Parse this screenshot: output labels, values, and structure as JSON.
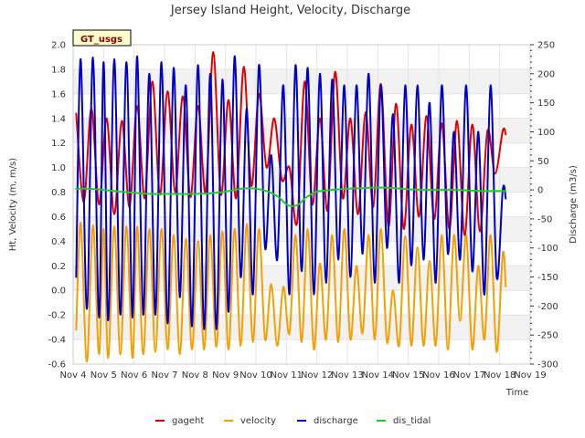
{
  "chart_data": {
    "type": "line",
    "title": "Jersey Island Height, Velocity, Discharge",
    "badge": "GT_usgs",
    "xlabel": "Time",
    "ylabel_left": "Ht, Velocity (m, m/s)",
    "ylabel_right": "Discharge (m3/s)",
    "ylim_left": [
      -0.6,
      2.0
    ],
    "ylim_right": [
      -300,
      250
    ],
    "xlim": [
      4,
      19
    ],
    "x_ticks": [
      4,
      5,
      6,
      7,
      8,
      9,
      10,
      11,
      12,
      13,
      14,
      15,
      16,
      17,
      18,
      19
    ],
    "x_tick_labels": [
      "Nov 4",
      "Nov 5",
      "Nov 6",
      "Nov 7",
      "Nov 8",
      "Nov 9",
      "Nov 10",
      "Nov 11",
      "Nov 12",
      "Nov 13",
      "Nov 14",
      "Nov 15",
      "Nov 16",
      "Nov 17",
      "Nov 18",
      "Nov 19"
    ],
    "y_left_ticks": [
      -0.6,
      -0.4,
      -0.2,
      0.0,
      0.2,
      0.4,
      0.6,
      0.8,
      1.0,
      1.2,
      1.4,
      1.6,
      1.8,
      2.0
    ],
    "y_left_tick_labels": [
      "-0.6",
      "-0.4",
      "-0.2",
      "0.0",
      "0.2",
      "0.4",
      "0.6",
      "0.8",
      "1.0",
      "1.2",
      "1.4",
      "1.6",
      "1.8",
      "2.0"
    ],
    "y_right_ticks": [
      -300,
      -250,
      -200,
      -150,
      -100,
      -50,
      0,
      50,
      100,
      150,
      200,
      250
    ],
    "y_right_tick_labels": [
      "-300",
      "-250",
      "-200",
      "-150",
      "-100",
      "-50",
      "0",
      "50",
      "100",
      "150",
      "200",
      "250"
    ],
    "grid": true,
    "series": [
      {
        "name": "gageht",
        "color": "#e00000",
        "axis": "left",
        "x": [
          4.1,
          4.35,
          4.6,
          4.85,
          5.1,
          5.35,
          5.6,
          5.85,
          6.1,
          6.35,
          6.6,
          6.85,
          7.1,
          7.35,
          7.6,
          7.85,
          8.1,
          8.35,
          8.6,
          8.85,
          9.1,
          9.35,
          9.6,
          9.85,
          10.1,
          10.35,
          10.6,
          10.85,
          11.1,
          11.35,
          11.6,
          11.85,
          12.1,
          12.35,
          12.6,
          12.85,
          13.1,
          13.35,
          13.6,
          13.85,
          14.1,
          14.35,
          14.6,
          14.85,
          15.1,
          15.35,
          15.6,
          15.85,
          16.1,
          16.35,
          16.6,
          16.85,
          17.1,
          17.35,
          17.6,
          17.85,
          18.1,
          18.2
        ],
        "y": [
          1.44,
          0.72,
          1.48,
          0.7,
          1.4,
          0.62,
          1.38,
          0.68,
          1.5,
          0.75,
          1.7,
          0.78,
          1.62,
          0.8,
          1.58,
          0.76,
          1.5,
          0.8,
          1.94,
          0.78,
          1.55,
          0.75,
          1.82,
          0.85,
          1.6,
          1.0,
          1.4,
          0.9,
          1.0,
          0.55,
          1.7,
          0.7,
          1.4,
          0.65,
          1.78,
          0.75,
          1.4,
          0.62,
          1.45,
          0.68,
          1.68,
          0.52,
          1.52,
          0.5,
          1.35,
          0.6,
          1.42,
          0.58,
          1.36,
          0.5,
          1.38,
          0.45,
          1.35,
          0.48,
          1.3,
          0.95,
          1.3,
          1.27
        ]
      },
      {
        "name": "velocity",
        "color": "#f5a000",
        "axis": "left",
        "x": [
          4.1,
          4.25,
          4.45,
          4.65,
          4.85,
          5.0,
          5.15,
          5.35,
          5.55,
          5.75,
          5.95,
          6.1,
          6.3,
          6.5,
          6.7,
          6.9,
          7.1,
          7.3,
          7.5,
          7.7,
          7.9,
          8.1,
          8.3,
          8.5,
          8.7,
          8.9,
          9.1,
          9.3,
          9.5,
          9.7,
          9.9,
          10.1,
          10.3,
          10.5,
          10.7,
          10.9,
          11.1,
          11.3,
          11.5,
          11.7,
          11.9,
          12.1,
          12.3,
          12.5,
          12.7,
          12.9,
          13.1,
          13.3,
          13.5,
          13.7,
          13.9,
          14.1,
          14.3,
          14.5,
          14.7,
          14.9,
          15.1,
          15.3,
          15.5,
          15.7,
          15.9,
          16.1,
          16.3,
          16.5,
          16.7,
          16.9,
          17.1,
          17.3,
          17.5,
          17.7,
          17.9,
          18.1,
          18.2
        ],
        "y": [
          -0.32,
          0.55,
          -0.58,
          0.53,
          -0.52,
          0.5,
          -0.55,
          0.52,
          -0.52,
          0.52,
          -0.55,
          0.52,
          -0.52,
          0.5,
          -0.5,
          0.5,
          -0.48,
          0.45,
          -0.52,
          0.42,
          -0.48,
          0.4,
          -0.48,
          0.45,
          -0.46,
          0.48,
          -0.48,
          0.5,
          -0.45,
          0.54,
          -0.42,
          0.5,
          -0.4,
          0.05,
          -0.45,
          0.03,
          -0.35,
          0.45,
          -0.42,
          0.5,
          -0.48,
          0.22,
          -0.4,
          0.45,
          -0.42,
          0.5,
          -0.4,
          0.2,
          -0.35,
          0.45,
          -0.4,
          0.5,
          -0.42,
          0.0,
          -0.45,
          0.44,
          -0.45,
          0.35,
          -0.45,
          0.24,
          -0.45,
          0.45,
          -0.48,
          0.45,
          -0.25,
          0.45,
          -0.48,
          0.2,
          -0.4,
          0.45,
          -0.5,
          0.3,
          0.03
        ]
      },
      {
        "name": "discharge",
        "color": "#0000cc",
        "axis": "right",
        "x": [
          4.1,
          4.25,
          4.45,
          4.65,
          4.85,
          5.0,
          5.15,
          5.35,
          5.55,
          5.75,
          5.95,
          6.1,
          6.3,
          6.5,
          6.7,
          6.9,
          7.1,
          7.3,
          7.5,
          7.7,
          7.9,
          8.1,
          8.3,
          8.5,
          8.7,
          8.9,
          9.1,
          9.3,
          9.5,
          9.7,
          9.9,
          10.1,
          10.3,
          10.5,
          10.7,
          10.9,
          11.1,
          11.3,
          11.5,
          11.7,
          11.9,
          12.1,
          12.3,
          12.5,
          12.7,
          12.9,
          13.1,
          13.3,
          13.5,
          13.7,
          13.9,
          14.1,
          14.3,
          14.5,
          14.7,
          14.9,
          15.1,
          15.3,
          15.5,
          15.7,
          15.9,
          16.1,
          16.3,
          16.5,
          16.7,
          16.9,
          17.1,
          17.3,
          17.5,
          17.7,
          17.9,
          18.1,
          18.2
        ],
        "y": [
          -150,
          225,
          -205,
          228,
          -220,
          220,
          -225,
          225,
          -215,
          220,
          -220,
          230,
          -215,
          200,
          -215,
          220,
          -230,
          210,
          -185,
          180,
          -235,
          215,
          -240,
          200,
          -240,
          190,
          -210,
          230,
          -150,
          140,
          -180,
          215,
          -100,
          60,
          -120,
          180,
          -180,
          215,
          -140,
          210,
          -180,
          200,
          -160,
          190,
          -120,
          180,
          -150,
          180,
          -110,
          200,
          -160,
          180,
          -100,
          130,
          -160,
          180,
          -130,
          180,
          -120,
          150,
          -160,
          180,
          -110,
          100,
          -120,
          180,
          -140,
          100,
          -180,
          180,
          -150,
          0,
          -15
        ]
      },
      {
        "name": "dis_tidal",
        "color": "#22cc22",
        "axis": "right",
        "x": [
          4.1,
          4.5,
          5.0,
          5.5,
          6.0,
          6.5,
          7.0,
          7.5,
          8.0,
          8.5,
          9.0,
          9.5,
          10.0,
          10.5,
          10.8,
          11.0,
          11.2,
          11.4,
          11.6,
          11.8,
          12.0,
          12.5,
          13.0,
          13.5,
          14.0,
          14.5,
          15.0,
          15.5,
          16.0,
          16.5,
          17.0,
          17.5,
          18.0,
          18.2
        ],
        "y": [
          2,
          2,
          0,
          -3,
          -5,
          -7,
          -7,
          -7,
          -7,
          -6,
          -3,
          2,
          2,
          -5,
          -15,
          -25,
          -28,
          -25,
          -15,
          -8,
          -3,
          0,
          2,
          3,
          4,
          3,
          1,
          0,
          0,
          0,
          -1,
          -2,
          -2,
          -2
        ]
      }
    ]
  }
}
